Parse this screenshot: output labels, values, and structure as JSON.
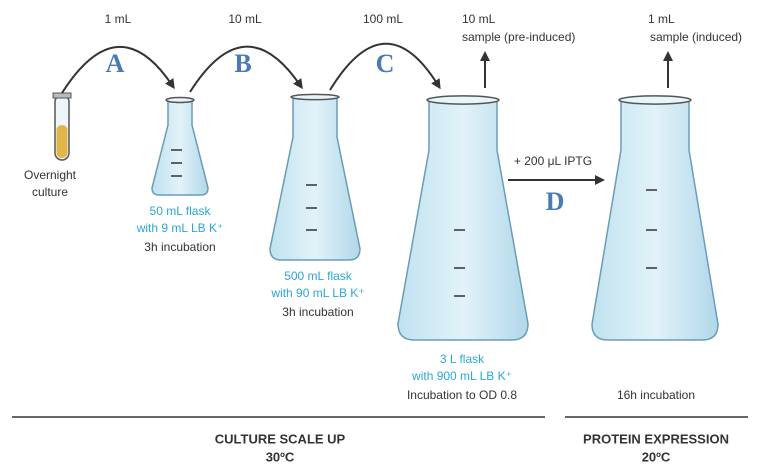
{
  "transfers": [
    {
      "volume": "1 mL",
      "step": "A"
    },
    {
      "volume": "10 mL",
      "step": "B"
    },
    {
      "volume": "100 mL",
      "step": "C"
    }
  ],
  "samples": [
    {
      "volume": "10 mL",
      "label": "sample (pre-induced)"
    },
    {
      "volume": "1 mL",
      "label": "sample (induced)"
    }
  ],
  "inoculum": {
    "label": [
      "Overnight",
      "culture"
    ]
  },
  "flasks": [
    {
      "size": "50 mL flask",
      "medium": "with 9 mL LB K⁺",
      "incubation": "3h incubation"
    },
    {
      "size": "500 mL flask",
      "medium": "with 90 mL LB K⁺",
      "incubation": "3h incubation"
    },
    {
      "size": "3 L flask",
      "medium": "with 900 mL LB K⁺",
      "incubation": "Incubation to OD 0.8"
    }
  ],
  "expression_flask": {
    "incubation": "16h incubation"
  },
  "induction": {
    "reagent": "+ 200 μL IPTG",
    "step": "D"
  },
  "phases": [
    {
      "title": "CULTURE SCALE UP",
      "temperature": "30ºC"
    },
    {
      "title": "PROTEIN EXPRESSION",
      "temperature": "20ºC"
    }
  ]
}
